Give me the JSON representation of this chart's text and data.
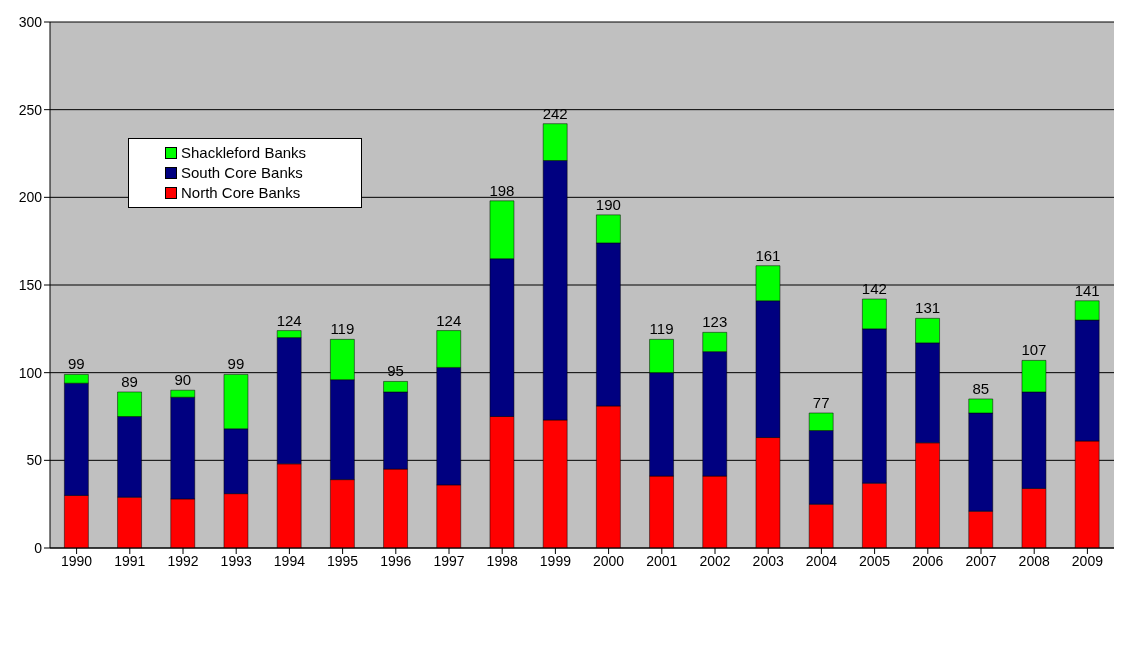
{
  "chart_data": {
    "type": "bar",
    "stacked": true,
    "categories": [
      "1990",
      "1991",
      "1992",
      "1993",
      "1994",
      "1995",
      "1996",
      "1997",
      "1998",
      "1999",
      "2000",
      "2001",
      "2002",
      "2003",
      "2004",
      "2005",
      "2006",
      "2007",
      "2008",
      "2009"
    ],
    "series": [
      {
        "name": "North Core Banks",
        "color": "#ff0000",
        "values": [
          30,
          29,
          28,
          31,
          48,
          39,
          45,
          36,
          75,
          73,
          81,
          41,
          41,
          63,
          25,
          37,
          60,
          21,
          34,
          61
        ]
      },
      {
        "name": "South Core Banks",
        "color": "#000080",
        "values": [
          64,
          46,
          58,
          37,
          72,
          57,
          44,
          67,
          90,
          148,
          93,
          59,
          71,
          78,
          42,
          88,
          57,
          56,
          55,
          69
        ]
      },
      {
        "name": "Shackleford Banks",
        "color": "#00ff00",
        "values": [
          5,
          14,
          4,
          31,
          4,
          23,
          6,
          21,
          33,
          21,
          16,
          19,
          11,
          20,
          10,
          17,
          14,
          8,
          18,
          11
        ]
      }
    ],
    "totals": [
      "99",
      "89",
      "90",
      "99",
      "124",
      "119",
      "95",
      "124",
      "198",
      "242",
      "190",
      "119",
      "123",
      "161",
      "77",
      "142",
      "131",
      "85",
      "107",
      "141"
    ],
    "ylim": [
      0,
      300
    ],
    "yticks": [
      0,
      50,
      100,
      150,
      200,
      250,
      300
    ],
    "grid": "y",
    "legend": "top left"
  }
}
